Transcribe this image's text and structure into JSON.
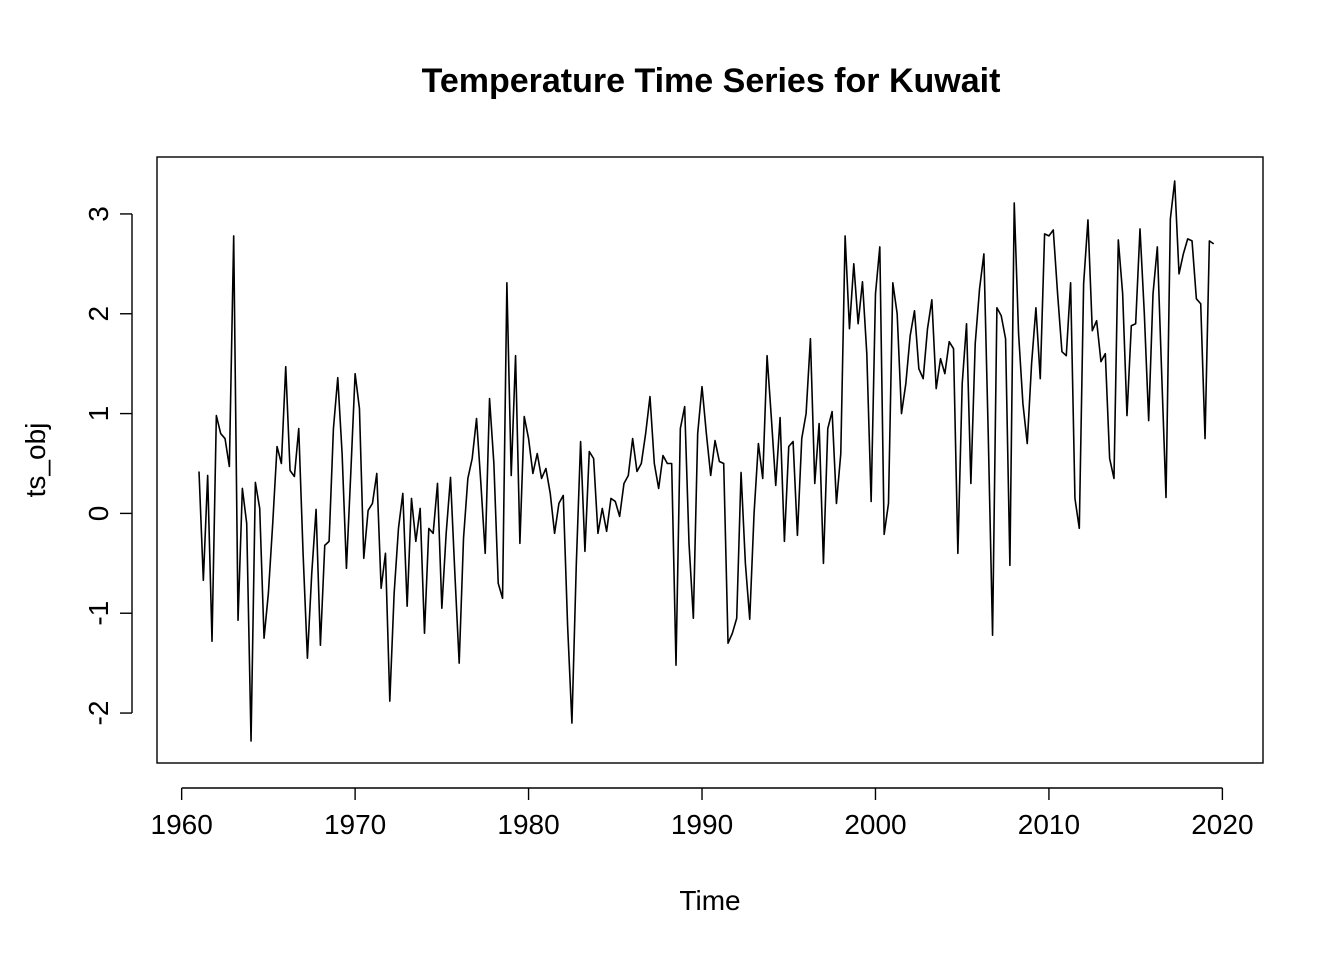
{
  "chart_data": {
    "type": "line",
    "title": "Temperature Time Series for Kuwait",
    "xlabel": "Time",
    "ylabel": "ts_obj",
    "xlim": [
      1961.0,
      2019.92
    ],
    "ylim": [
      -2.28,
      3.34
    ],
    "x_ticks": [
      1960,
      1970,
      1980,
      1990,
      2000,
      2010,
      2020
    ],
    "y_ticks": [
      -2,
      -1,
      0,
      1,
      2,
      3
    ],
    "frequency": 4,
    "start": 1961.0,
    "series": [
      {
        "color": "#000000",
        "values": [
          0.42,
          -0.67,
          0.38,
          -1.28,
          0.98,
          0.8,
          0.75,
          0.47,
          2.78,
          -1.07,
          0.25,
          -0.1,
          -2.28,
          0.31,
          0.05,
          -1.25,
          -0.8,
          -0.1,
          0.67,
          0.5,
          1.47,
          0.43,
          0.37,
          0.85,
          -0.4,
          -1.45,
          -0.6,
          0.04,
          -1.32,
          -0.32,
          -0.28,
          0.85,
          1.36,
          0.6,
          -0.55,
          0.4,
          1.4,
          1.05,
          -0.45,
          0.03,
          0.1,
          0.4,
          -0.75,
          -0.4,
          -1.88,
          -0.8,
          -0.15,
          0.2,
          -0.93,
          0.15,
          -0.28,
          0.05,
          -1.2,
          -0.15,
          -0.2,
          0.3,
          -0.95,
          -0.2,
          0.36,
          -0.6,
          -1.5,
          -0.25,
          0.35,
          0.55,
          0.95,
          0.3,
          -0.4,
          1.15,
          0.5,
          -0.7,
          -0.85,
          2.31,
          0.38,
          1.58,
          -0.3,
          0.97,
          0.75,
          0.4,
          0.6,
          0.35,
          0.45,
          0.2,
          -0.2,
          0.1,
          0.18,
          -1.12,
          -2.1,
          -0.52,
          0.72,
          -0.38,
          0.62,
          0.55,
          -0.2,
          0.05,
          -0.18,
          0.15,
          0.12,
          -0.03,
          0.3,
          0.38,
          0.75,
          0.42,
          0.5,
          0.8,
          1.17,
          0.5,
          0.25,
          0.58,
          0.5,
          0.5,
          -1.52,
          0.85,
          1.07,
          -0.3,
          -1.05,
          0.8,
          1.27,
          0.8,
          0.38,
          0.73,
          0.52,
          0.5,
          -1.3,
          -1.2,
          -1.05,
          0.41,
          -0.5,
          -1.06,
          0.0,
          0.7,
          0.35,
          1.58,
          0.95,
          0.28,
          0.96,
          -0.28,
          0.67,
          0.72,
          -0.22,
          0.75,
          1.0,
          1.75,
          0.3,
          0.9,
          -0.5,
          0.85,
          1.02,
          0.1,
          0.6,
          2.78,
          1.85,
          2.5,
          1.9,
          2.32,
          1.6,
          0.12,
          2.2,
          2.67,
          -0.21,
          0.1,
          2.31,
          2.0,
          1.0,
          1.3,
          1.78,
          2.03,
          1.45,
          1.35,
          1.85,
          2.14,
          1.25,
          1.55,
          1.4,
          1.72,
          1.65,
          -0.4,
          1.3,
          1.9,
          0.3,
          1.7,
          2.25,
          2.6,
          0.8,
          -1.22,
          2.06,
          1.98,
          1.75,
          -0.52,
          3.11,
          1.8,
          1.1,
          0.7,
          1.5,
          2.06,
          1.35,
          2.8,
          2.78,
          2.84,
          2.2,
          1.62,
          1.58,
          2.31,
          0.15,
          -0.15,
          2.3,
          2.94,
          1.83,
          1.93,
          1.52,
          1.6,
          0.55,
          0.35,
          2.74,
          2.2,
          0.98,
          1.88,
          1.9,
          2.85,
          2.0,
          0.93,
          2.2,
          2.67,
          1.4,
          0.16,
          2.95,
          3.33,
          2.4,
          2.6,
          2.75,
          2.73,
          2.15,
          2.1,
          0.75,
          2.73,
          2.7
        ]
      }
    ]
  }
}
